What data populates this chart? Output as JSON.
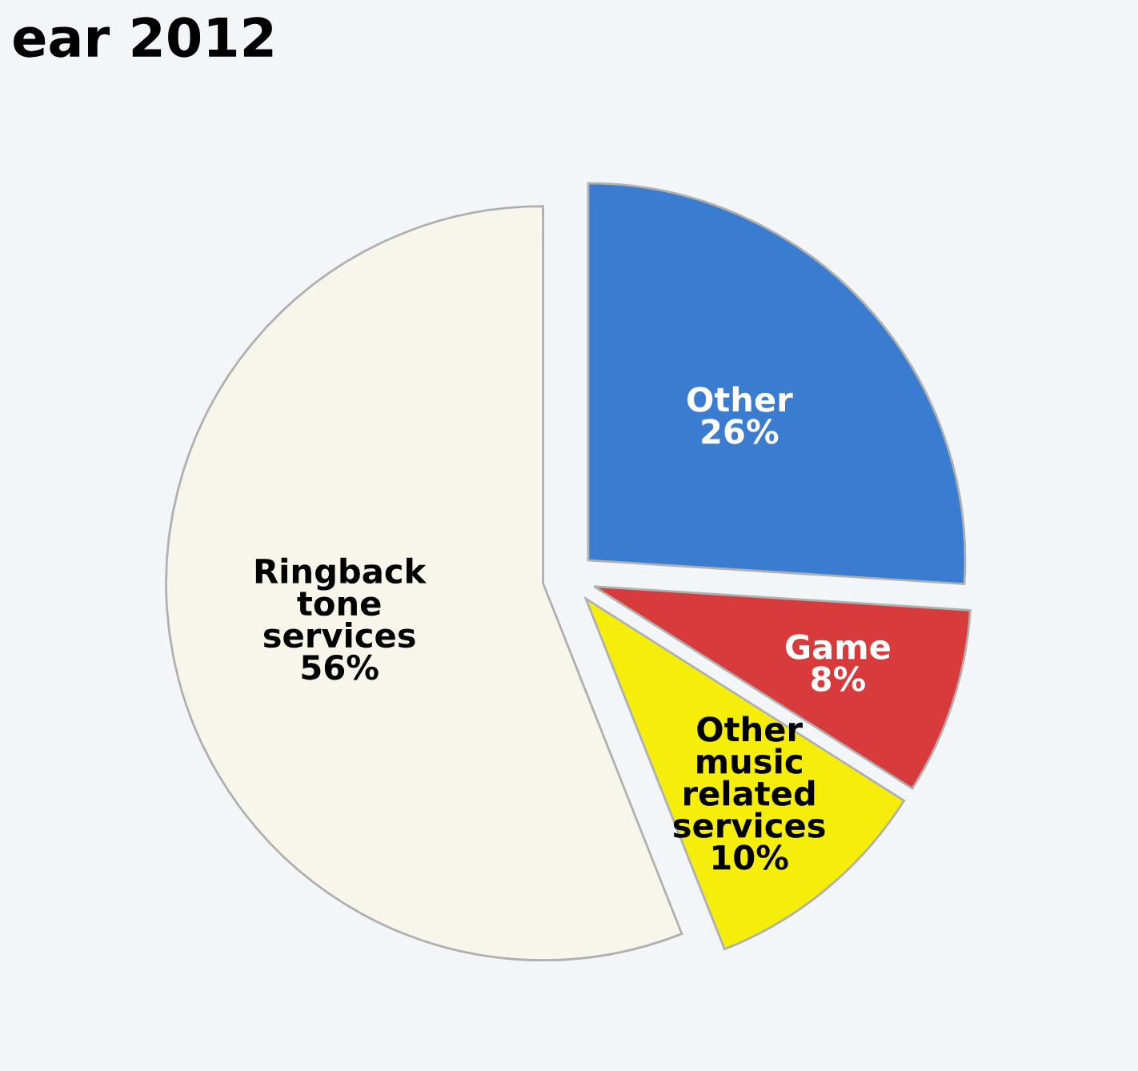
{
  "chart_data": {
    "type": "pie",
    "title": "ear 2012",
    "categories": [
      "Other",
      "Game",
      "Other music related services",
      "Ringback tone services"
    ],
    "values": [
      26,
      8,
      10,
      56
    ],
    "colors": [
      "#3a7ccf",
      "#d83b3b",
      "#f4ee0a",
      "#f8f5ea"
    ],
    "value_labels": [
      "26%",
      "8%",
      "10%",
      "56%"
    ],
    "legend": false
  }
}
